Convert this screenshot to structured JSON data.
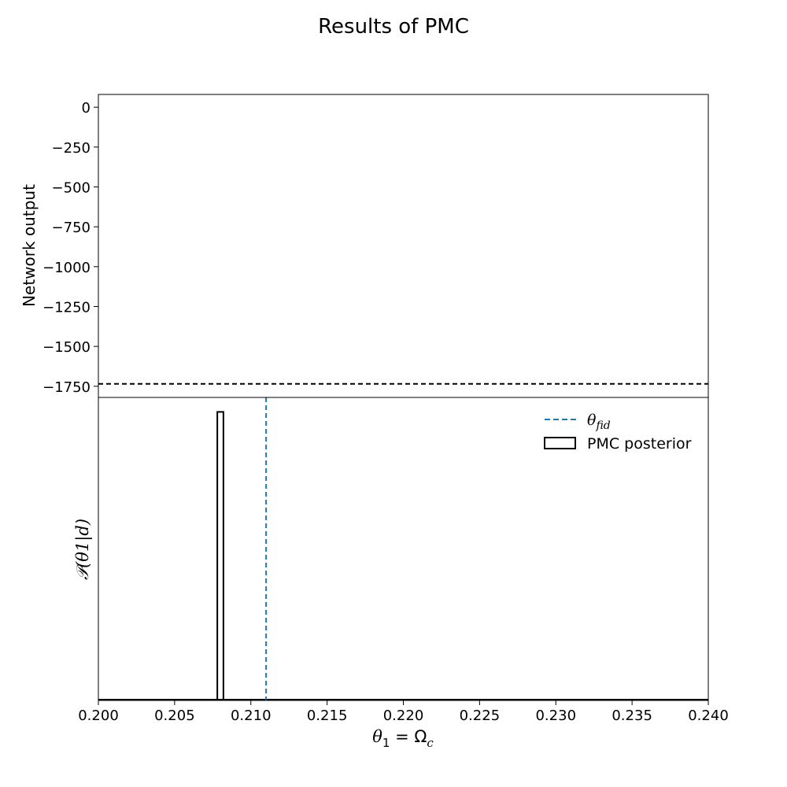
{
  "chart_data": {
    "title": "Results of PMC",
    "shared_x": {
      "label": "θ",
      "label_subscript": "1",
      "label_rest": " = Ω",
      "label_rest_subscript": "c",
      "xlim": [
        0.2,
        0.24
      ],
      "ticks": [
        0.2,
        0.205,
        0.21,
        0.215,
        0.22,
        0.225,
        0.23,
        0.235,
        0.24
      ],
      "tick_labels": [
        "0.200",
        "0.205",
        "0.210",
        "0.215",
        "0.220",
        "0.225",
        "0.230",
        "0.235",
        "0.240"
      ]
    },
    "panels": [
      {
        "type": "line",
        "ylabel": "Network output",
        "ylim": [
          -1820,
          80
        ],
        "yticks": [
          0,
          -250,
          -500,
          -750,
          -1000,
          -1250,
          -1500,
          -1750
        ],
        "ytick_labels": [
          "0",
          "−250",
          "−500",
          "−750",
          "−1000",
          "−1250",
          "−1500",
          "−1750"
        ],
        "hlines": [
          {
            "y": -1735,
            "color": "#000000",
            "style": "dashed"
          }
        ],
        "grid": false
      },
      {
        "type": "histogram",
        "ylabel": "𝒫(θ1|d)",
        "ylim": [
          0,
          1.05
        ],
        "yticks": [],
        "bins": [
          {
            "x0": 0.2078,
            "x1": 0.2082,
            "height": 1.0
          }
        ],
        "vlines": [
          {
            "x": 0.211,
            "color": "#1f77b4",
            "style": "dashed",
            "legend_key": "theta_fid"
          }
        ],
        "legend": {
          "placement": "upper-right",
          "entries": [
            {
              "key": "theta_fid",
              "symbol": "θ",
              "symbol_subscript": "fid",
              "kind": "dashed-line",
              "color": "#1f77b4"
            },
            {
              "key": "pmc_posterior",
              "label": "PMC posterior",
              "kind": "box",
              "color": "#000000"
            }
          ]
        },
        "grid": false
      }
    ]
  }
}
